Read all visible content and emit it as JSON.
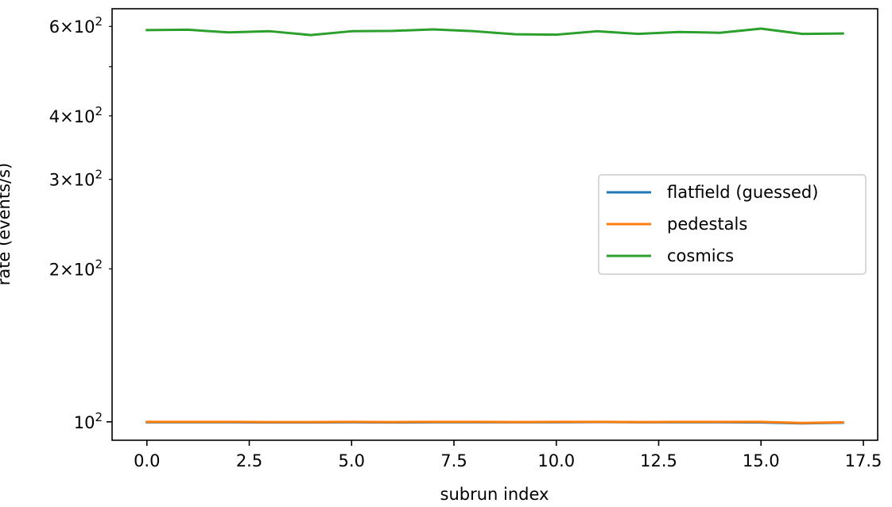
{
  "chart_data": {
    "type": "line",
    "title": "",
    "xlabel": "subrun index",
    "ylabel": "rate (events/s)",
    "yscale": "log",
    "xlim": [
      -0.85,
      17.85
    ],
    "ylim": [
      92,
      650
    ],
    "xticks": [
      {
        "value": 0.0,
        "label": "0.0"
      },
      {
        "value": 2.5,
        "label": "2.5"
      },
      {
        "value": 5.0,
        "label": "5.0"
      },
      {
        "value": 7.5,
        "label": "7.5"
      },
      {
        "value": 10.0,
        "label": "10.0"
      },
      {
        "value": 12.5,
        "label": "12.5"
      },
      {
        "value": 15.0,
        "label": "15.0"
      },
      {
        "value": 17.5,
        "label": "17.5"
      }
    ],
    "yticks_major": [
      {
        "value": 100,
        "base": "10",
        "exp": "2",
        "coef": ""
      }
    ],
    "yticks_minor": [
      {
        "value": 200,
        "coef": "2",
        "base": "10",
        "exp": "2",
        "labeled": true
      },
      {
        "value": 300,
        "coef": "3",
        "base": "10",
        "exp": "2",
        "labeled": true
      },
      {
        "value": 400,
        "coef": "4",
        "base": "10",
        "exp": "2",
        "labeled": true
      },
      {
        "value": 500,
        "coef": "",
        "base": "",
        "exp": "",
        "labeled": false
      },
      {
        "value": 600,
        "coef": "6",
        "base": "10",
        "exp": "2",
        "labeled": true
      }
    ],
    "grid": false,
    "legend_position": "center-right",
    "x": [
      0,
      1,
      2,
      3,
      4,
      5,
      6,
      7,
      8,
      9,
      10,
      11,
      12,
      13,
      14,
      15,
      16,
      17
    ],
    "series": [
      {
        "name": "flatfield (guessed)",
        "color": "#1f77b4",
        "values": [
          99.8,
          99.8,
          99.8,
          99.7,
          99.7,
          99.8,
          99.7,
          99.8,
          99.8,
          99.8,
          99.8,
          99.9,
          99.8,
          99.8,
          99.8,
          99.7,
          99.3,
          99.6
        ]
      },
      {
        "name": "pedestals",
        "color": "#ff7f0e",
        "values": [
          100.0,
          100.0,
          100.0,
          99.9,
          99.9,
          100.0,
          99.9,
          100.0,
          100.0,
          99.9,
          100.0,
          100.0,
          99.9,
          100.0,
          100.0,
          100.0,
          99.5,
          99.8
        ]
      },
      {
        "name": "cosmics",
        "color": "#2ca02c",
        "values": [
          590,
          591,
          584,
          587,
          577,
          587,
          588,
          592,
          587,
          579,
          578,
          587,
          580,
          585,
          583,
          594,
          580,
          581
        ]
      }
    ]
  }
}
